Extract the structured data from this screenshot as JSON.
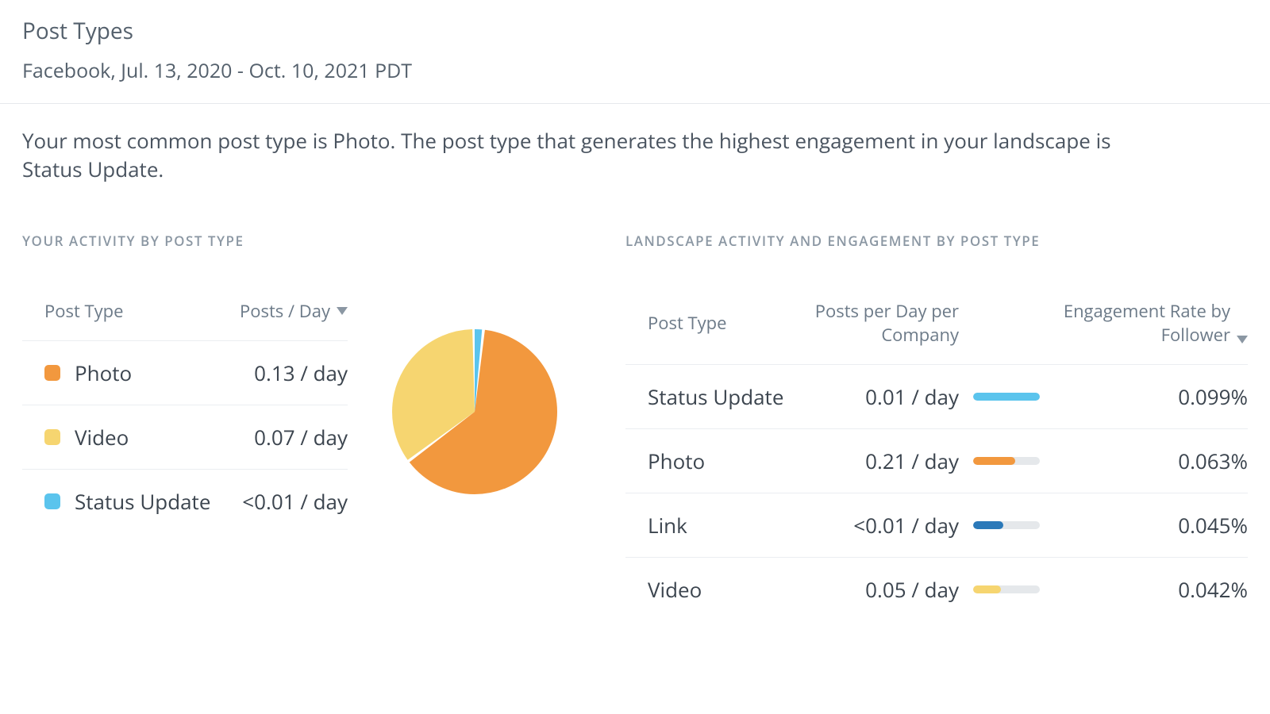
{
  "header": {
    "title": "Post Types",
    "subtitle": "Facebook, Jul. 13, 2020 - Oct. 10, 2021 PDT"
  },
  "summary": "Your most common post type is Photo. The post type that generates the highest engagement in your landscape is Status Update.",
  "colors": {
    "photo": "#f2983e",
    "video": "#f6d570",
    "status": "#5bc4ed",
    "link": "#2b79b9",
    "bar_bg": "#e5e8eb",
    "divider": "#ebeef1",
    "text": "#3c454f",
    "muted": "#6c7a88"
  },
  "left_section": {
    "title": "YOUR ACTIVITY BY POST TYPE",
    "headers": {
      "posttype": "Post Type",
      "postsday": "Posts / Day"
    },
    "rows": [
      {
        "label": "Photo",
        "value": "0.13 / day",
        "color_key": "photo"
      },
      {
        "label": "Video",
        "value": "0.07 / day",
        "color_key": "video"
      },
      {
        "label": "Status Update",
        "value": "<0.01 / day",
        "color_key": "status"
      }
    ],
    "pie": {
      "type": "pie",
      "radius": 104,
      "gap_deg": 2,
      "background": "#ffffff",
      "slices": [
        {
          "color_key": "status",
          "fraction": 0.02
        },
        {
          "color_key": "photo",
          "fraction": 0.63
        },
        {
          "color_key": "video",
          "fraction": 0.35
        }
      ]
    }
  },
  "right_section": {
    "title": "LANDSCAPE ACTIVITY AND ENGAGEMENT BY POST TYPE",
    "headers": {
      "posttype": "Post Type",
      "postsday": "Posts per Day per Company",
      "engagement": "Engagement Rate by Follower"
    },
    "rows": [
      {
        "label": "Status Update",
        "postsday": "0.01 / day",
        "eng": "0.099%",
        "bar_pct": 100,
        "color_key": "status"
      },
      {
        "label": "Photo",
        "postsday": "0.21 / day",
        "eng": "0.063%",
        "bar_pct": 63,
        "color_key": "photo"
      },
      {
        "label": "Link",
        "postsday": "<0.01 / day",
        "eng": "0.045%",
        "bar_pct": 45,
        "color_key": "link"
      },
      {
        "label": "Video",
        "postsday": "0.05 / day",
        "eng": "0.042%",
        "bar_pct": 42,
        "color_key": "video"
      }
    ]
  }
}
